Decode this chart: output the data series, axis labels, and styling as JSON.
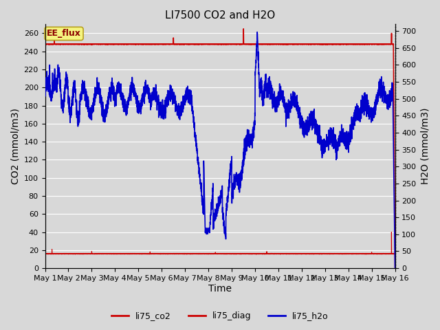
{
  "title": "LI7500 CO2 and H2O",
  "xlabel": "Time",
  "ylabel_left": "CO2 (mmol/m3)",
  "ylabel_right": "H2O (mmol/m3)",
  "annotation": "EE_flux",
  "x_start": 0,
  "x_end": 15,
  "x_ticks": [
    0,
    1,
    2,
    3,
    4,
    5,
    6,
    7,
    8,
    9,
    10,
    11,
    12,
    13,
    14,
    15
  ],
  "x_tick_labels": [
    "May 1",
    "May 2",
    "May 3",
    "May 4",
    "May 5",
    "May 6",
    "May 7",
    "May 8",
    "May 9",
    "May 10",
    "May 11",
    "May 12",
    "May 13",
    "May 14",
    "May 15",
    "May 16"
  ],
  "ylim_left": [
    0,
    270
  ],
  "ylim_right": [
    0,
    720
  ],
  "y_ticks_left": [
    0,
    20,
    40,
    60,
    80,
    100,
    120,
    140,
    160,
    180,
    200,
    220,
    240,
    260
  ],
  "y_ticks_right": [
    0,
    50,
    100,
    150,
    200,
    250,
    300,
    350,
    400,
    450,
    500,
    550,
    600,
    650,
    700
  ],
  "background_color": "#d8d8d8",
  "plot_bg_color": "#d8d8d8",
  "grid_color": "#ffffff",
  "co2_color": "#cc0000",
  "diag_color": "#cc0000",
  "h2o_color": "#0000cc",
  "title_fontsize": 11,
  "axis_fontsize": 10,
  "tick_fontsize": 8,
  "legend_fontsize": 9,
  "diag_linewidth": 1.2,
  "co2_linewidth": 0.8,
  "h2o_linewidth": 1.2
}
